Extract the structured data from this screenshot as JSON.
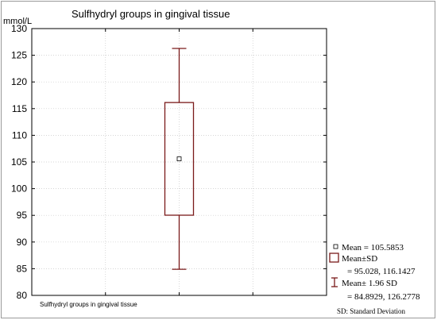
{
  "chart_data": {
    "type": "box",
    "title": "Sulfhydryl groups in gingival tissue",
    "y_unit_label": "mmol/L",
    "xlabel": "",
    "category": "Sulfhydryl groups in gingival tissue",
    "ylim": [
      80,
      130
    ],
    "y_ticks": [
      80,
      85,
      90,
      95,
      100,
      105,
      110,
      115,
      120,
      125,
      130
    ],
    "grid": true,
    "legend_position": "right",
    "box": {
      "mean": 105.5853,
      "box_low": 95.028,
      "box_high": 116.1427,
      "whisker_low": 84.8929,
      "whisker_high": 126.2778
    },
    "series_color": "#7a1a1a"
  },
  "legend": {
    "mean_label": "Mean =  105.5853",
    "sd_label": "Mean±SD",
    "sd_values": "=  95.028, 116.1427",
    "ci_label": "Mean±  1.96 SD",
    "ci_values": "=  84.8929, 126.2778"
  },
  "footnote": "SD: Standard Deviation"
}
